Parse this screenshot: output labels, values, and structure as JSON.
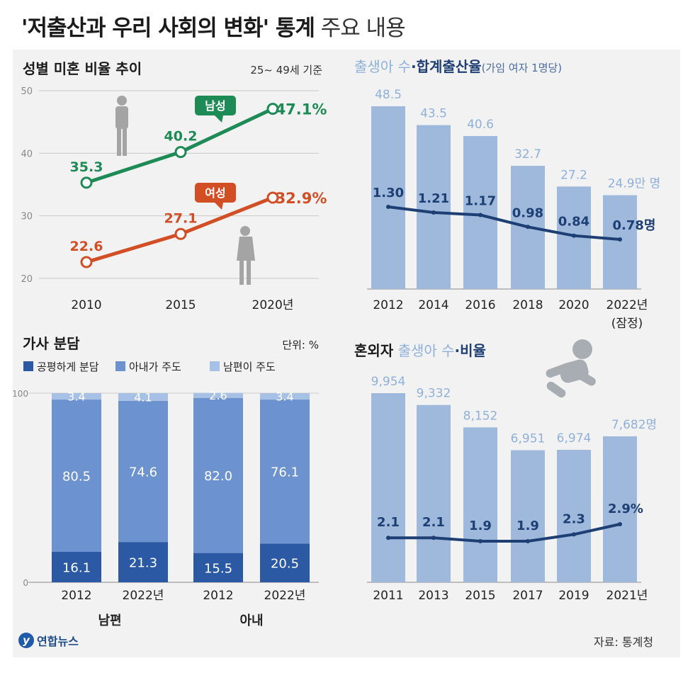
{
  "title_bold": "'저출산과 우리 사회의 변화' 통계",
  "title_thin": "주요 내용",
  "source": "자료: 통계청",
  "logo_text": "연합뉴스",
  "chart_data": [
    {
      "type": "line",
      "title": "성별 미혼 비율 추이",
      "note": "25~ 49세 기준",
      "x_labels": [
        "2010",
        "2015",
        "2020년"
      ],
      "ylim": [
        20,
        50
      ],
      "y_ticks": [
        "20",
        "30",
        "40",
        "50"
      ],
      "series": [
        {
          "name": "남성",
          "values": [
            35.3,
            40.2,
            47.1
          ],
          "labels": [
            "35.3",
            "40.2",
            "47.1%"
          ],
          "color": "#1e8a55"
        },
        {
          "name": "여성",
          "values": [
            22.6,
            27.1,
            32.9
          ],
          "labels": [
            "22.6",
            "27.1",
            "32.9%"
          ],
          "color": "#d24e25"
        }
      ]
    },
    {
      "type": "bar",
      "title_light": "출생아 수",
      "title_dot": "·",
      "title_bold": "합계출산율",
      "title_note": "(가임 여자 1명당)",
      "categories": [
        "2012",
        "2014",
        "2016",
        "2018",
        "2020",
        "2022년"
      ],
      "category_note": "(잠정)",
      "bars": {
        "values": [
          48.5,
          43.5,
          40.6,
          32.7,
          27.2,
          24.9
        ],
        "labels": [
          "48.5",
          "43.5",
          "40.6",
          "32.7",
          "27.2",
          "24.9만 명"
        ],
        "color": "#9fb9dd"
      },
      "line": {
        "values": [
          1.3,
          1.21,
          1.17,
          0.98,
          0.84,
          0.78
        ],
        "labels": [
          "1.30",
          "1.21",
          "1.17",
          "0.98",
          "0.84",
          "0.78명"
        ],
        "color": "#1e3f73"
      }
    },
    {
      "type": "stacked_bar",
      "title": "가사 분담",
      "unit": "단위: %",
      "y_ticks": [
        "0",
        "100"
      ],
      "legend": [
        {
          "name": "공평하게 분담",
          "color": "#2b59a3"
        },
        {
          "name": "아내가 주도",
          "color": "#6c92cf"
        },
        {
          "name": "남편이 주도",
          "color": "#a7c0e6"
        }
      ],
      "groups": [
        {
          "name": "남편",
          "bars": [
            {
              "label": "2012",
              "values": [
                16.1,
                80.5,
                3.4
              ]
            },
            {
              "label": "2022년",
              "values": [
                21.3,
                74.6,
                4.1
              ]
            }
          ]
        },
        {
          "name": "아내",
          "bars": [
            {
              "label": "2012",
              "values": [
                15.5,
                82.0,
                2.6
              ]
            },
            {
              "label": "2022년",
              "values": [
                20.5,
                76.1,
                3.4
              ]
            }
          ]
        }
      ]
    },
    {
      "type": "bar",
      "title_bold": "혼외자",
      "title_light": "출생아 수",
      "title_dot": "·",
      "title_bold2": "비율",
      "categories": [
        "2011",
        "2013",
        "2015",
        "2017",
        "2019",
        "2021년"
      ],
      "bars": {
        "values": [
          9954,
          9332,
          8152,
          6951,
          6974,
          7682
        ],
        "labels": [
          "9,954",
          "9,332",
          "8,152",
          "6,951",
          "6,974",
          "7,682명"
        ],
        "color": "#9fb9dd"
      },
      "line": {
        "values": [
          2.1,
          2.1,
          1.9,
          1.9,
          2.3,
          2.9
        ],
        "labels": [
          "2.1",
          "2.1",
          "1.9",
          "1.9",
          "2.3",
          "2.9%"
        ],
        "color": "#1e3f73"
      }
    }
  ]
}
